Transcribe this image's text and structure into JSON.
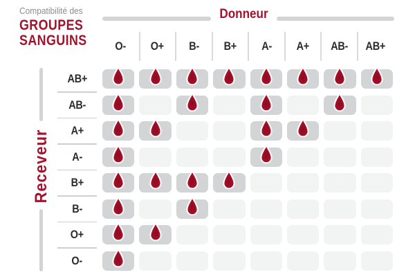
{
  "title": {
    "prefix": "Compatibilité des",
    "line1": "GROUPES",
    "line2": "SANGUINS"
  },
  "chart_data": {
    "type": "heatmap",
    "title": "Compatibilité des GROUPES SANGUINS",
    "x_axis": {
      "label": "Donneur",
      "categories": [
        "O-",
        "O+",
        "B-",
        "B+",
        "A-",
        "A+",
        "AB-",
        "AB+"
      ]
    },
    "y_axis": {
      "label": "Receveur",
      "categories": [
        "AB+",
        "AB-",
        "A+",
        "A-",
        "B+",
        "B-",
        "O+",
        "O-"
      ]
    },
    "compatible_marker": "blood-drop",
    "matrix": [
      [
        1,
        1,
        1,
        1,
        1,
        1,
        1,
        1
      ],
      [
        1,
        0,
        1,
        0,
        1,
        0,
        1,
        0
      ],
      [
        1,
        1,
        0,
        0,
        1,
        1,
        0,
        0
      ],
      [
        1,
        0,
        0,
        0,
        1,
        0,
        0,
        0
      ],
      [
        1,
        1,
        1,
        1,
        0,
        0,
        0,
        0
      ],
      [
        1,
        0,
        1,
        0,
        0,
        0,
        0,
        0
      ],
      [
        1,
        1,
        0,
        0,
        0,
        0,
        0,
        0
      ],
      [
        1,
        0,
        0,
        0,
        0,
        0,
        0,
        0
      ]
    ]
  },
  "colors": {
    "accent_red": "#a3132b",
    "drop_red_outer": "#b41231",
    "drop_red_inner": "#8c0b21",
    "active_cell_gray": "#d2d4d5",
    "empty_cell_gray": "#f2f3f3",
    "axis_bar_gray": "#d2d5d6",
    "separator_gray": "#d9dadb",
    "header_text": "#2b2b2b",
    "subtitle_gray": "#8c8c8c"
  },
  "icons": {
    "compatible": "blood-drop-icon"
  }
}
